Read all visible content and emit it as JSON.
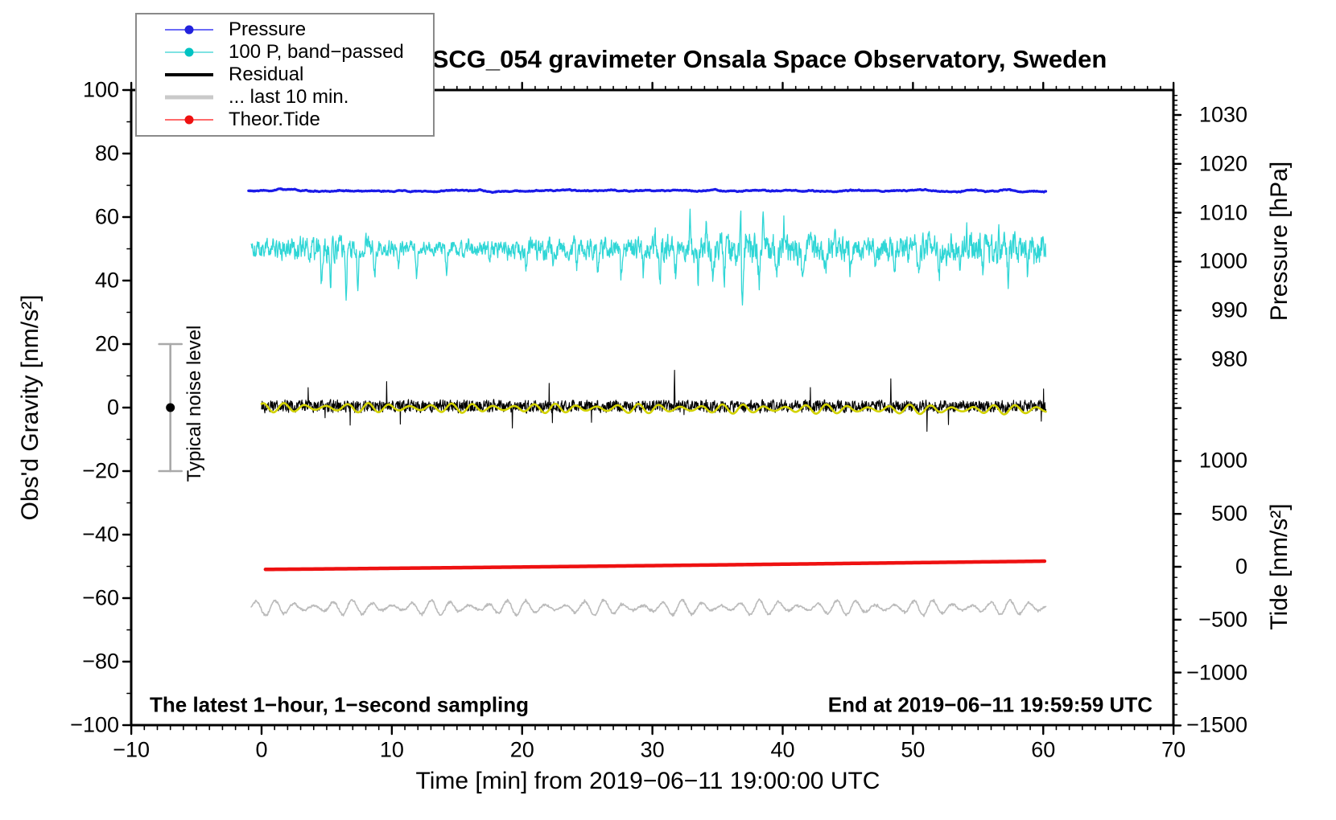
{
  "figure": {
    "title": "SCG_054 gravimeter Onsala Space Observatory, Sweden",
    "xlabel": "Time [min] from 2019−06−11 19:00:00 UTC",
    "ylabel_left": "Obs'd Gravity [nm/s²]",
    "ylabel_pressure": "Pressure [hPa]",
    "ylabel_tide": "Tide [nm/s²]",
    "annotation_left": "The latest 1−hour, 1−second sampling",
    "annotation_right": "End at 2019−06−11 19:59:59 UTC",
    "noise_label": "Typical noise level"
  },
  "legend": {
    "items": [
      {
        "label": "Pressure",
        "line_color": "#6b6bf7",
        "line_width": 2,
        "dot_color": "#2222dd"
      },
      {
        "label": "100 P, band−passed",
        "line_color": "#7fe3e3",
        "line_width": 2,
        "dot_color": "#00c3c3"
      },
      {
        "label": "Residual",
        "line_color": "#000000",
        "line_width": 4,
        "dot_color": null
      },
      {
        "label": "... last 10 min.",
        "line_color": "#c9c9c9",
        "line_width": 5,
        "dot_color": null
      },
      {
        "label": "Theor.Tide",
        "line_color": "#ff6b6b",
        "line_width": 2,
        "dot_color": "#ee1111"
      }
    ]
  },
  "chart_data": {
    "type": "line",
    "title": "SCG_054 gravimeter Onsala Space Observatory, Sweden",
    "x_axis": {
      "label": "Time [min] from 2019−06−11 19:00:00 UTC",
      "min": -10,
      "max": 70,
      "major_ticks": [
        -10,
        0,
        10,
        20,
        30,
        40,
        50,
        60,
        70
      ],
      "minor_step": 1
    },
    "y_left": {
      "label": "Obs'd Gravity [nm/s²]",
      "min": -100,
      "max": 100,
      "major_ticks": [
        100,
        80,
        60,
        40,
        20,
        0,
        -20,
        -40,
        -60,
        -80,
        -100
      ],
      "minor_step": 10
    },
    "y_pressure": {
      "label": "Pressure [hPa]",
      "ticks": [
        1030,
        1020,
        1010,
        1000,
        990,
        980
      ],
      "minor_step": 1,
      "gravity_of_1030hpa": 92.2,
      "gravity_per_hpa": 1.539
    },
    "y_tide": {
      "label": "Tide [nm/s²]",
      "ticks": [
        1000,
        500,
        0,
        -500,
        -1000,
        -1500
      ],
      "minor_step": 100,
      "gravity_of_zero_tide": -50.1,
      "gravity_per_500": 16.65
    },
    "series": [
      {
        "name": "Pressure",
        "color": "#1b1be8",
        "width": 3.2,
        "baseline_gravity": 68.3,
        "approx_value_hpa": 1014.5,
        "noise_amplitude": 0.3,
        "t_start": -1.0,
        "t_end": 60.2
      },
      {
        "name": "100 P, band−passed",
        "color": "#2fd6d6",
        "width": 1.3,
        "baseline_gravity": 50,
        "typical_amplitude": 3,
        "max_gravity": 67,
        "min_gravity": 31,
        "largest_event_t_min": 36.8,
        "t_start": -0.8,
        "t_end": 60.2
      },
      {
        "name": "Residual",
        "color": "#000000",
        "width": 1.1,
        "baseline_gravity": 0.4,
        "typical_amplitude": 2.5,
        "spike_amplitude": 7,
        "t_start": 0,
        "t_end": 60.2
      },
      {
        "name": "Residual smoothed",
        "color": "#d2d200",
        "width": 2.6,
        "baseline_gravity": 0,
        "typical_amplitude": 1.3,
        "t_start": 0,
        "t_end": 60.2
      },
      {
        "name": "Theor.Tide",
        "color": "#ee1111",
        "width": 4.5,
        "start_gravity": -50.95,
        "end_gravity": -48.35,
        "start_tide": -25,
        "end_tide": 55,
        "t_start": 0.3,
        "t_end": 60.3
      },
      {
        "name": "... last 10 min.",
        "color": "#bbbbbb",
        "width": 1.6,
        "baseline_gravity": -63,
        "typical_amplitude": 2.2,
        "t_start": -0.8,
        "t_end": 60.2
      }
    ],
    "noise_bar": {
      "x_min": -7,
      "from_gravity": -20,
      "to_gravity": 20,
      "dot_gravity": 0,
      "label": "Typical noise level"
    }
  }
}
